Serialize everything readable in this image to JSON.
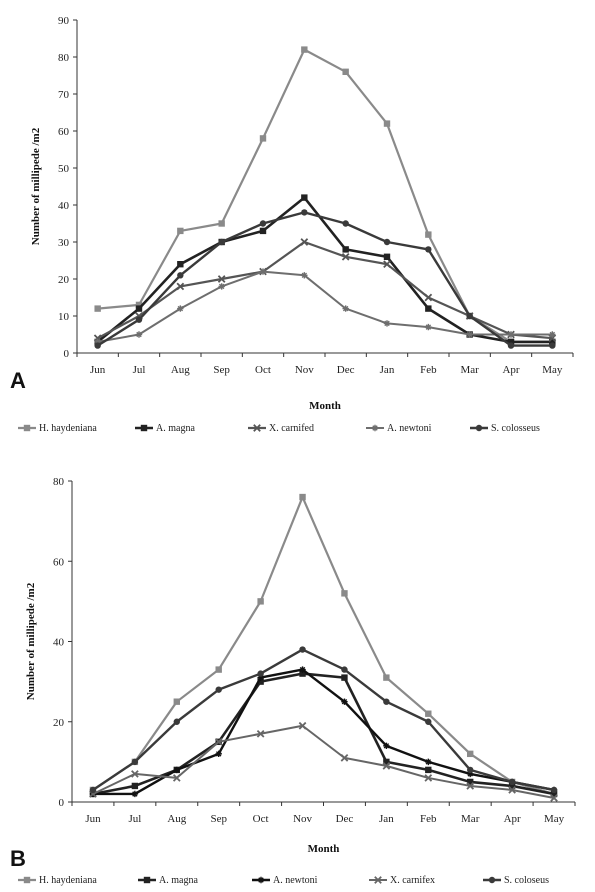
{
  "chart_data": [
    {
      "type": "line",
      "panel_label": "A",
      "xlabel": "Month",
      "ylabel": "Number of millipede /m2",
      "ylim": [
        0,
        90
      ],
      "yticks": [
        0,
        10,
        20,
        30,
        40,
        50,
        60,
        70,
        80,
        90
      ],
      "categories": [
        "Jun",
        "Jul",
        "Aug",
        "Sep",
        "Oct",
        "Nov",
        "Dec",
        "Jan",
        "Feb",
        "Mar",
        "Apr",
        "May"
      ],
      "series": [
        {
          "name": "H. haydeniana",
          "color": "#8a8a8a",
          "width": 2.2,
          "marker": "square",
          "values": [
            12,
            13,
            33,
            35,
            58,
            82,
            76,
            62,
            32,
            10,
            3,
            3
          ]
        },
        {
          "name": "A. magna",
          "color": "#222222",
          "width": 2.6,
          "marker": "square",
          "values": [
            3,
            12,
            24,
            30,
            33,
            42,
            28,
            26,
            12,
            5,
            3,
            3
          ]
        },
        {
          "name": "X. carnifed",
          "color": "#555555",
          "width": 2.2,
          "marker": "x",
          "values": [
            4,
            10,
            18,
            20,
            22,
            30,
            26,
            24,
            15,
            10,
            5,
            4
          ]
        },
        {
          "name": "A. newtoni",
          "color": "#6e6e6e",
          "width": 2.0,
          "marker": "star",
          "values": [
            3,
            5,
            12,
            18,
            22,
            21,
            12,
            8,
            7,
            5,
            5,
            5
          ]
        },
        {
          "name": "S. colosseus",
          "color": "#3a3a3a",
          "width": 2.4,
          "marker": "circle",
          "values": [
            2,
            9,
            21,
            30,
            35,
            38,
            35,
            30,
            28,
            10,
            2,
            2
          ]
        }
      ]
    },
    {
      "type": "line",
      "panel_label": "B",
      "xlabel": "Month",
      "ylabel": "Number of millipede /m2",
      "ylim": [
        0,
        80
      ],
      "yticks": [
        0,
        20,
        40,
        60,
        80
      ],
      "categories": [
        "Jun",
        "Jul",
        "Aug",
        "Sep",
        "Oct",
        "Nov",
        "Dec",
        "Jan",
        "Feb",
        "Mar",
        "Apr",
        "May"
      ],
      "series": [
        {
          "name": "H. haydeniana",
          "color": "#8a8a8a",
          "width": 2.2,
          "marker": "square",
          "values": [
            3,
            10,
            25,
            33,
            50,
            76,
            52,
            31,
            22,
            12,
            5,
            2
          ]
        },
        {
          "name": "A. magna",
          "color": "#222222",
          "width": 2.6,
          "marker": "square",
          "values": [
            2,
            4,
            8,
            15,
            30,
            32,
            31,
            10,
            8,
            5,
            4,
            2
          ]
        },
        {
          "name": "A. newtoni",
          "color": "#111111",
          "width": 2.4,
          "marker": "star",
          "values": [
            2,
            2,
            8,
            12,
            31,
            33,
            25,
            14,
            10,
            7,
            5,
            3
          ]
        },
        {
          "name": "X. carnifex",
          "color": "#666666",
          "width": 2.0,
          "marker": "x",
          "values": [
            2,
            7,
            6,
            15,
            17,
            19,
            11,
            9,
            6,
            4,
            3,
            1
          ]
        },
        {
          "name": "S. coloseus",
          "color": "#3a3a3a",
          "width": 2.4,
          "marker": "circle",
          "values": [
            3,
            10,
            20,
            28,
            32,
            38,
            33,
            25,
            20,
            8,
            5,
            3
          ]
        }
      ]
    }
  ]
}
